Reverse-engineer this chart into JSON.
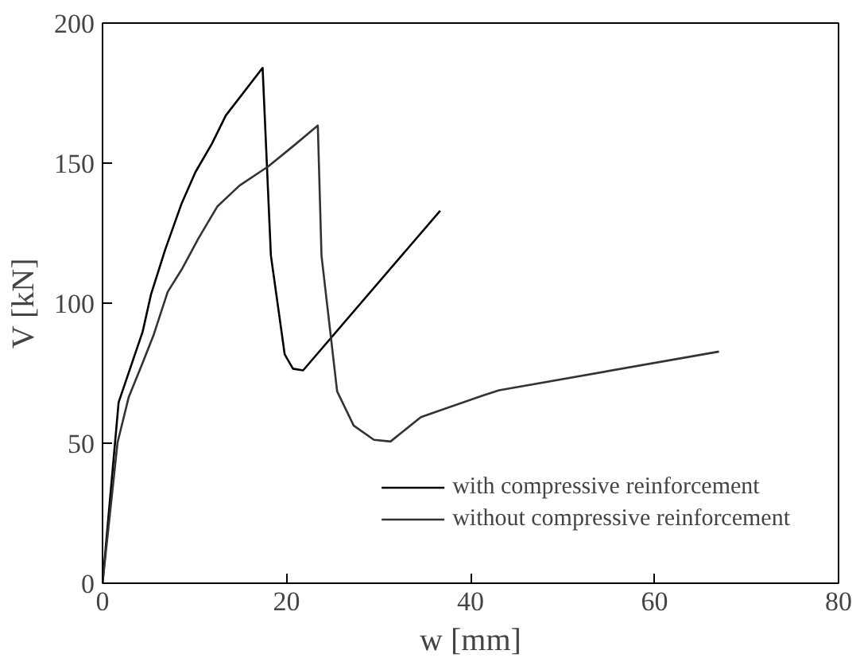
{
  "chart_data": {
    "type": "line",
    "xlabel": "w [mm]",
    "ylabel": "V [kN]",
    "xlim": [
      0,
      80
    ],
    "ylim": [
      0,
      200
    ],
    "xticks": [
      0,
      20,
      40,
      60,
      80
    ],
    "yticks": [
      0,
      50,
      100,
      150,
      200
    ],
    "grid": false,
    "legend": "bottom right",
    "marker": "none",
    "line_style": "solid",
    "series": [
      {
        "name": "with compressive reinforcement",
        "color": "#000000",
        "x": [
          0,
          1.75,
          4.36,
          5.26,
          6.8,
          8.6,
          10.1,
          11.9,
          13.4,
          17.4,
          18.3,
          19.8,
          20.7,
          21.8,
          36.7
        ],
        "values": [
          0,
          64.6,
          89.8,
          103,
          119,
          135.6,
          146.8,
          157,
          167,
          184,
          117,
          81.7,
          76.6,
          76,
          133
        ]
      },
      {
        "name": "without compressive reinforcement",
        "color": "#333333",
        "x": [
          0,
          1.63,
          2.85,
          4.36,
          5.57,
          7.08,
          8.6,
          10.4,
          12.5,
          14.9,
          18,
          20.7,
          23.4,
          23.8,
          25.5,
          27.3,
          29.5,
          31.3,
          34.6,
          41.3,
          43.1,
          67
        ],
        "values": [
          0,
          50.2,
          66.5,
          78.7,
          88.8,
          104,
          112,
          123,
          134.6,
          142,
          148.8,
          156,
          163.4,
          117,
          68.5,
          56.3,
          51.2,
          50.6,
          59.3,
          67,
          68.9,
          82.7
        ]
      }
    ]
  }
}
